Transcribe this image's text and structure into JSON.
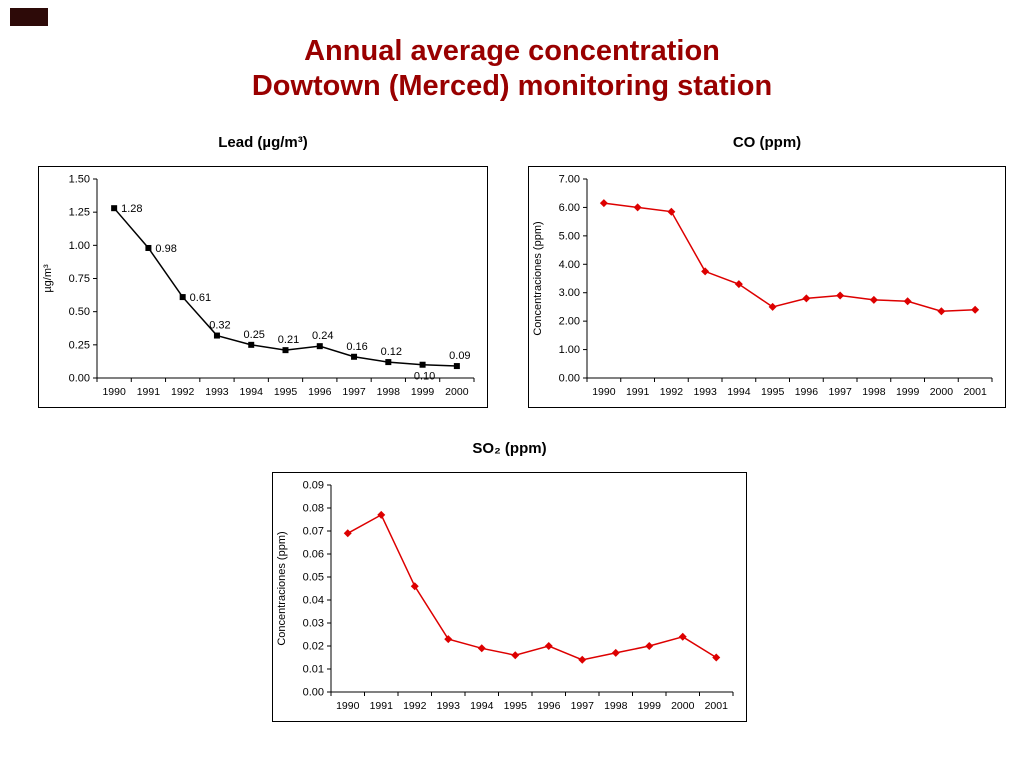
{
  "slide": {
    "title_line1": "Annual average concentration",
    "title_line2": "Dowtown (Merced) monitoring station",
    "title_color": "#990000",
    "corner_mark_color": "#2d0a08"
  },
  "chart_data": [
    {
      "type": "line",
      "title": "Lead (µg/m³)",
      "ylabel": "µg/m³",
      "categories": [
        "1990",
        "1991",
        "1992",
        "1993",
        "1994",
        "1995",
        "1996",
        "1997",
        "1998",
        "1999",
        "2000"
      ],
      "values": [
        1.28,
        0.98,
        0.61,
        0.32,
        0.25,
        0.21,
        0.24,
        0.16,
        0.12,
        0.1,
        0.09
      ],
      "point_labels": [
        "1.28",
        "0.98",
        "0.61",
        "0.32",
        "0.25",
        "0.21",
        "0.24",
        "0.16",
        "0.12",
        "0.10",
        "0.09"
      ],
      "label_pos": [
        "right",
        "right",
        "right",
        "above",
        "above",
        "above",
        "above",
        "above",
        "above",
        "below",
        "above"
      ],
      "ylim": [
        0,
        1.5
      ],
      "ytick": 0.25,
      "y_decimals": 2,
      "color": "#000000",
      "marker": "square",
      "grid": false,
      "legend": "none"
    },
    {
      "type": "line",
      "title": "CO (ppm)",
      "ylabel": "Concentraciones (ppm)",
      "categories": [
        "1990",
        "1991",
        "1992",
        "1993",
        "1994",
        "1995",
        "1996",
        "1997",
        "1998",
        "1999",
        "2000",
        "2001"
      ],
      "values": [
        6.15,
        6.0,
        5.85,
        3.75,
        3.3,
        2.5,
        2.8,
        2.9,
        2.75,
        2.7,
        2.35,
        2.4
      ],
      "ylim": [
        0,
        7.0
      ],
      "ytick": 1.0,
      "y_decimals": 2,
      "color": "#dd0000",
      "marker": "diamond",
      "grid": false,
      "legend": "none"
    },
    {
      "type": "line",
      "title": "SO₂ (ppm)",
      "ylabel": "Concentraciones (ppm)",
      "categories": [
        "1990",
        "1991",
        "1992",
        "1993",
        "1994",
        "1995",
        "1996",
        "1997",
        "1998",
        "1999",
        "2000",
        "2001"
      ],
      "values": [
        0.069,
        0.077,
        0.046,
        0.023,
        0.019,
        0.016,
        0.02,
        0.014,
        0.017,
        0.02,
        0.024,
        0.015
      ],
      "ylim": [
        0,
        0.09
      ],
      "ytick": 0.01,
      "y_decimals": 2,
      "color": "#dd0000",
      "marker": "diamond",
      "grid": false,
      "legend": "none"
    }
  ]
}
